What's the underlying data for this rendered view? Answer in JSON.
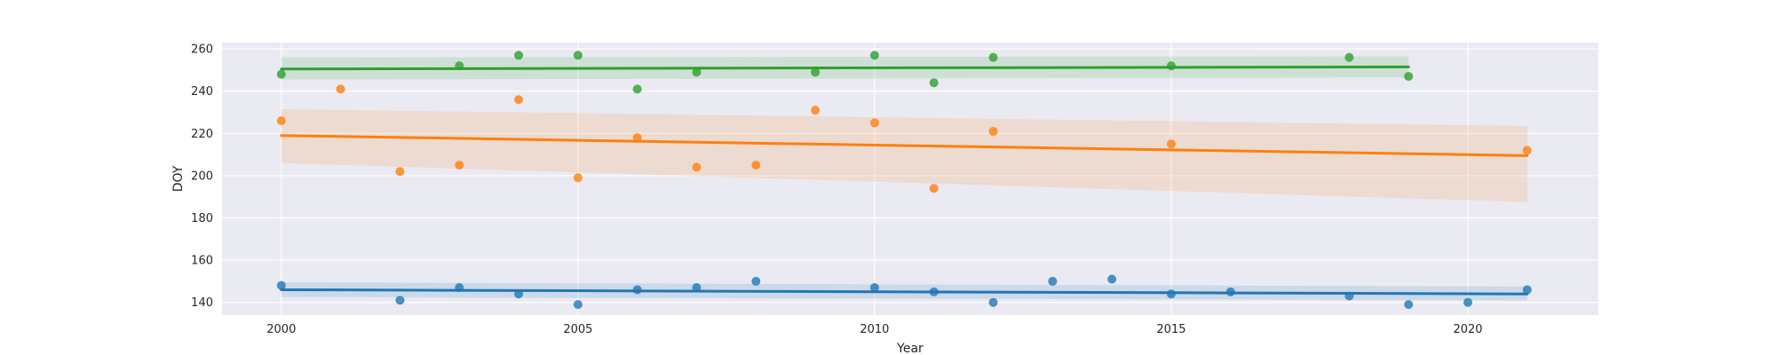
{
  "chart_data": {
    "type": "scatter",
    "xlabel": "Year",
    "ylabel": "DOY",
    "xlim": [
      1999.0,
      2022.2
    ],
    "ylim": [
      134,
      263
    ],
    "x_ticks": [
      2000,
      2005,
      2010,
      2015,
      2020
    ],
    "y_ticks": [
      140,
      160,
      180,
      200,
      220,
      240,
      260
    ],
    "grid": true,
    "legend": false,
    "background_color": "#eaeaf2",
    "series": [
      {
        "color": "#1f77b4",
        "points": [
          [
            2000,
            148
          ],
          [
            2002,
            141
          ],
          [
            2003,
            147
          ],
          [
            2004,
            144
          ],
          [
            2005,
            139
          ],
          [
            2006,
            146
          ],
          [
            2007,
            147
          ],
          [
            2008,
            150
          ],
          [
            2010,
            147
          ],
          [
            2011,
            145
          ],
          [
            2012,
            140
          ],
          [
            2013,
            150
          ],
          [
            2014,
            151
          ],
          [
            2015,
            144
          ],
          [
            2016,
            145
          ],
          [
            2018,
            143
          ],
          [
            2019,
            139
          ],
          [
            2020,
            140
          ],
          [
            2021,
            146
          ]
        ],
        "trend": {
          "x": [
            2000,
            2021
          ],
          "y": [
            146.0,
            144.0
          ]
        },
        "ci": {
          "x": [
            2000,
            2021
          ],
          "upper": [
            149.5,
            147.5
          ],
          "lower": [
            142.5,
            141.0
          ]
        }
      },
      {
        "color": "#ff7f0e",
        "points": [
          [
            2000,
            226
          ],
          [
            2001,
            241
          ],
          [
            2002,
            202
          ],
          [
            2003,
            205
          ],
          [
            2004,
            236
          ],
          [
            2005,
            199
          ],
          [
            2006,
            218
          ],
          [
            2007,
            204
          ],
          [
            2008,
            205
          ],
          [
            2009,
            231
          ],
          [
            2010,
            225
          ],
          [
            2011,
            194
          ],
          [
            2012,
            221
          ],
          [
            2015,
            215
          ],
          [
            2021,
            212
          ]
        ],
        "trend": {
          "x": [
            2000,
            2021
          ],
          "y": [
            219.0,
            209.5
          ]
        },
        "ci": {
          "x": [
            2000,
            2021
          ],
          "upper": [
            231.5,
            223.5
          ],
          "lower": [
            206.0,
            187.5
          ]
        }
      },
      {
        "color": "#2ca02c",
        "points": [
          [
            2000,
            248
          ],
          [
            2003,
            252
          ],
          [
            2004,
            257
          ],
          [
            2005,
            257
          ],
          [
            2006,
            241
          ],
          [
            2007,
            249
          ],
          [
            2009,
            249
          ],
          [
            2010,
            257
          ],
          [
            2011,
            244
          ],
          [
            2012,
            256
          ],
          [
            2015,
            252
          ],
          [
            2018,
            256
          ],
          [
            2019,
            247
          ]
        ],
        "trend": {
          "x": [
            2000,
            2019
          ],
          "y": [
            250.5,
            251.5
          ]
        },
        "ci": {
          "x": [
            2000,
            2019
          ],
          "upper": [
            256.0,
            256.5
          ],
          "lower": [
            245.5,
            246.5
          ]
        }
      }
    ]
  }
}
